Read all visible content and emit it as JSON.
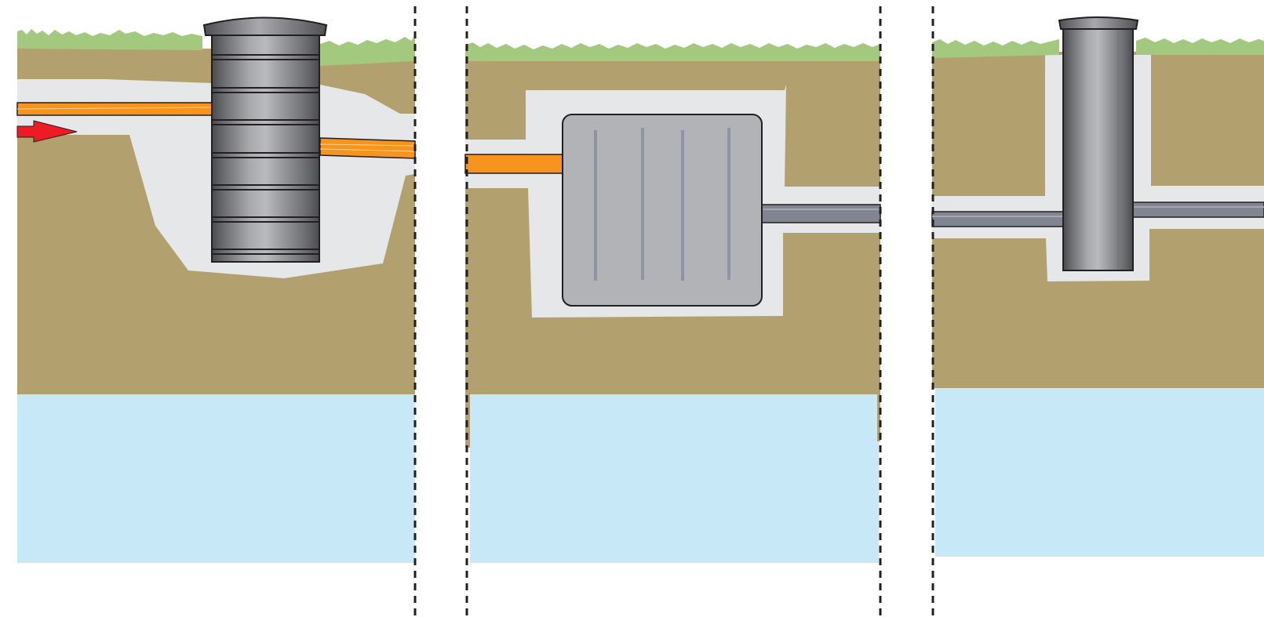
{
  "colors": {
    "background": "#ffffff",
    "soil": "#b3a06f",
    "backfill": "#e6e7e8",
    "grass": "#a3c97f",
    "groundwater": "#c6e8f7",
    "orange_pipe": "#f7941d",
    "gray_pipe": "#808590",
    "tank_body": "#b1b3b6",
    "tank_rib": "#8e94a1",
    "arrow": "#ed1c24",
    "outline": "#231f20",
    "divider": "#231f20"
  },
  "panels": [
    {
      "name": "manhole-panel",
      "component": "ribbed-cylindrical-manhole-icon",
      "inlet": "orange-pipe",
      "outlet": "orange-pipe",
      "flow_arrow": "right-arrow-icon"
    },
    {
      "name": "tank-panel",
      "component": "rectangular-tank-icon",
      "inlet": "orange-pipe",
      "outlet": "gray-pipe"
    },
    {
      "name": "riser-panel",
      "component": "cylindrical-riser-icon",
      "inlet": "gray-pipe",
      "outlet": "gray-pipe"
    }
  ]
}
